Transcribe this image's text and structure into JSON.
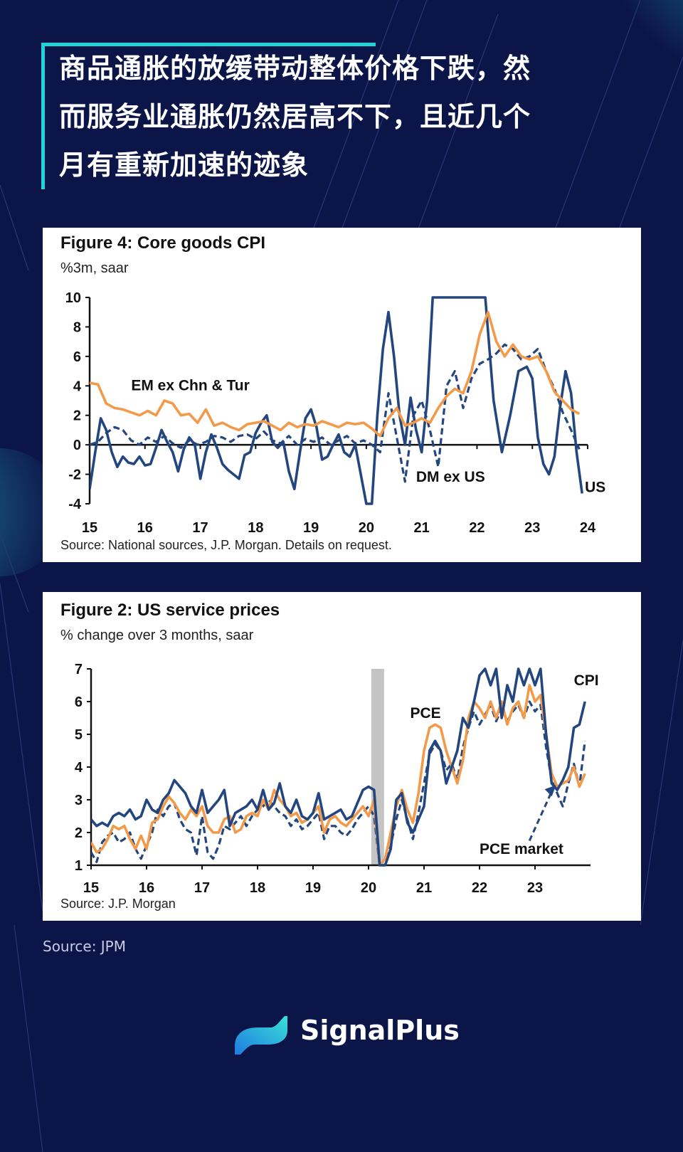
{
  "headline": {
    "lines": [
      "商品通胀的放缓带动整体价格下跌，然",
      "而服务业通胀仍然居高不下，且近几个",
      "月有重新加速的迹象"
    ]
  },
  "colors": {
    "background": "#0b1548",
    "accent": "#1fd3d6",
    "navy_series": "#1f3f7a",
    "orange_series": "#f29a4a"
  },
  "chart_data": [
    {
      "type": "line",
      "title": "Figure 4: Core goods CPI",
      "subtitle": "%3m, saar",
      "source": "Source: National sources, J.P. Morgan. Details on request.",
      "x_tick_labels": [
        "15",
        "16",
        "17",
        "18",
        "19",
        "20",
        "21",
        "22",
        "23",
        "24"
      ],
      "y_tick_labels": [
        "10",
        "8",
        "6",
        "4",
        "2",
        "0",
        "-2",
        "-4"
      ],
      "xlim": [
        15,
        24
      ],
      "ylim": [
        -4,
        10
      ],
      "annotations": [
        "EM ex Chn & Tur",
        "DM ex US",
        "US"
      ],
      "series": [
        {
          "name": "EM ex Chn & Tur",
          "style": "solid-orange",
          "x": [
            15,
            15.15,
            15.3,
            15.45,
            15.6,
            15.75,
            15.9,
            16.05,
            16.2,
            16.35,
            16.5,
            16.65,
            16.8,
            16.95,
            17.1,
            17.25,
            17.4,
            17.55,
            17.7,
            17.85,
            18.0,
            18.15,
            18.3,
            18.45,
            18.6,
            18.75,
            18.9,
            19.05,
            19.2,
            19.35,
            19.5,
            19.65,
            19.8,
            19.95,
            20.1,
            20.25,
            20.4,
            20.55,
            20.7,
            20.85,
            21.0,
            21.15,
            21.3,
            21.45,
            21.6,
            21.75,
            21.9,
            22.05,
            22.2,
            22.35,
            22.5,
            22.65,
            22.8,
            22.95,
            23.1,
            23.25,
            23.4,
            23.55,
            23.7,
            23.85
          ],
          "y": [
            4.2,
            4.1,
            2.8,
            2.5,
            2.4,
            2.2,
            2.0,
            2.3,
            2.0,
            3.0,
            2.8,
            2.0,
            2.1,
            1.5,
            2.4,
            1.3,
            1.5,
            1.2,
            1.0,
            1.4,
            1.5,
            1.6,
            1.3,
            1.0,
            1.5,
            1.2,
            1.4,
            1.3,
            1.6,
            1.4,
            1.2,
            1.5,
            1.4,
            1.5,
            1.1,
            0.6,
            1.8,
            2.5,
            1.3,
            1.5,
            1.8,
            1.5,
            2.5,
            3.3,
            3.8,
            3.5,
            5.0,
            7.5,
            9.0,
            7.0,
            6.0,
            6.8,
            6.0,
            5.8,
            6.0,
            5.0,
            3.6,
            3.0,
            2.4,
            2.1
          ]
        },
        {
          "name": "DM ex US",
          "style": "dashed-navy",
          "x": [
            15,
            15.15,
            15.3,
            15.45,
            15.6,
            15.75,
            15.9,
            16.05,
            16.2,
            16.35,
            16.5,
            16.65,
            16.8,
            16.95,
            17.1,
            17.25,
            17.4,
            17.55,
            17.7,
            17.85,
            18.0,
            18.15,
            18.3,
            18.45,
            18.6,
            18.75,
            18.9,
            19.05,
            19.2,
            19.35,
            19.5,
            19.65,
            19.8,
            19.95,
            20.1,
            20.25,
            20.4,
            20.55,
            20.7,
            20.85,
            21.0,
            21.15,
            21.3,
            21.45,
            21.6,
            21.75,
            21.9,
            22.05,
            22.2,
            22.35,
            22.5,
            22.65,
            22.8,
            22.95,
            23.1,
            23.25,
            23.4,
            23.55,
            23.7,
            23.85
          ],
          "y": [
            0,
            0.2,
            0.8,
            1.2,
            1.0,
            0.3,
            0.0,
            0.5,
            0.2,
            0.6,
            0.1,
            -0.2,
            0.3,
            0.0,
            0.2,
            0.6,
            0.5,
            0.2,
            0.6,
            0.7,
            0.4,
            0.9,
            0.3,
            0.1,
            0.6,
            0.0,
            0.4,
            0.2,
            0.5,
            0.0,
            0.3,
            0.6,
            0.1,
            0.3,
            0.0,
            -0.5,
            3.5,
            0.5,
            -2.5,
            2.0,
            3.0,
            1.0,
            -1.5,
            4.0,
            5.0,
            2.5,
            4.5,
            5.5,
            5.8,
            6.2,
            6.8,
            6.5,
            5.8,
            6.0,
            6.5,
            5.0,
            3.8,
            2.2,
            1.0,
            -0.3
          ]
        },
        {
          "name": "US",
          "style": "solid-navy",
          "x": [
            15,
            15.1,
            15.2,
            15.3,
            15.4,
            15.5,
            15.6,
            15.7,
            15.8,
            15.9,
            16.0,
            16.1,
            16.2,
            16.3,
            16.4,
            16.5,
            16.6,
            16.7,
            16.8,
            16.9,
            17.0,
            17.1,
            17.2,
            17.3,
            17.4,
            17.5,
            17.6,
            17.7,
            17.8,
            17.9,
            18.0,
            18.1,
            18.2,
            18.3,
            18.4,
            18.5,
            18.6,
            18.7,
            18.8,
            18.9,
            19.0,
            19.1,
            19.2,
            19.3,
            19.4,
            19.5,
            19.6,
            19.7,
            19.8,
            19.9,
            20.0,
            20.1,
            20.2,
            20.3,
            20.4,
            20.5,
            20.6,
            20.7,
            20.8,
            20.9,
            21.0,
            21.1,
            21.2,
            21.27,
            21.32,
            21.55,
            21.62,
            22.1,
            22.15,
            22.3,
            22.45,
            22.6,
            22.75,
            22.9,
            23.0,
            23.1,
            23.2,
            23.3,
            23.4,
            23.5,
            23.6,
            23.7,
            23.8,
            23.9
          ],
          "y": [
            -3.0,
            -0.5,
            1.8,
            1.0,
            -0.5,
            -1.5,
            -0.8,
            -1.2,
            -1.3,
            -0.8,
            -1.4,
            -1.3,
            -0.2,
            1.0,
            0.2,
            -0.5,
            -1.8,
            -0.3,
            0.5,
            0.0,
            -2.3,
            -0.5,
            0.7,
            -0.2,
            -1.3,
            -1.7,
            -2.0,
            -2.3,
            -0.7,
            -0.5,
            0.8,
            1.5,
            2.0,
            0.2,
            -0.2,
            0.2,
            -1.8,
            -3.0,
            -0.5,
            1.8,
            2.4,
            1.2,
            -1.0,
            -0.8,
            0.0,
            0.7,
            -0.5,
            -0.8,
            0.0,
            -2.0,
            -4.0,
            -4.0,
            2.0,
            6.5,
            9.0,
            6.0,
            2.0,
            0.0,
            3.2,
            1.0,
            -0.5,
            3.0,
            10,
            10,
            10,
            10,
            10,
            10,
            10,
            3.0,
            -0.5,
            2.0,
            5.0,
            5.3,
            4.5,
            0.5,
            -1.3,
            -2.0,
            -0.8,
            2.5,
            5.0,
            3.5,
            -0.5,
            -3.3
          ]
        }
      ]
    },
    {
      "type": "line",
      "title": "Figure 2: US service prices",
      "subtitle": "% change over 3 months, saar",
      "source": "Source: J.P. Morgan",
      "x_tick_labels": [
        "15",
        "16",
        "17",
        "18",
        "19",
        "20",
        "21",
        "22",
        "23"
      ],
      "y_tick_labels": [
        "7",
        "6",
        "5",
        "4",
        "3",
        "2",
        "1"
      ],
      "xlim": [
        15,
        24
      ],
      "ylim": [
        1,
        7
      ],
      "shaded_region": [
        20.05,
        20.28
      ],
      "annotations": [
        "PCE",
        "CPI",
        "PCE market"
      ],
      "series": [
        {
          "name": "CPI",
          "style": "solid-navy",
          "x": [
            15,
            15.1,
            15.2,
            15.3,
            15.4,
            15.5,
            15.6,
            15.7,
            15.8,
            15.9,
            16.0,
            16.1,
            16.2,
            16.3,
            16.4,
            16.5,
            16.6,
            16.7,
            16.8,
            16.9,
            17.0,
            17.1,
            17.2,
            17.3,
            17.4,
            17.5,
            17.6,
            17.7,
            17.8,
            17.9,
            18.0,
            18.1,
            18.2,
            18.3,
            18.4,
            18.5,
            18.6,
            18.7,
            18.8,
            18.9,
            19.0,
            19.1,
            19.2,
            19.3,
            19.4,
            19.5,
            19.6,
            19.7,
            19.8,
            19.9,
            20.0,
            20.1,
            20.2,
            20.3,
            20.4,
            20.5,
            20.6,
            20.7,
            20.8,
            20.9,
            21.0,
            21.1,
            21.2,
            21.3,
            21.4,
            21.5,
            21.6,
            21.7,
            21.8,
            21.9,
            22.0,
            22.1,
            22.2,
            22.3,
            22.4,
            22.5,
            22.6,
            22.7,
            22.8,
            22.9,
            23.0,
            23.1,
            23.2,
            23.3,
            23.4,
            23.5,
            23.6,
            23.7,
            23.8,
            23.9
          ],
          "y": [
            2.4,
            2.2,
            2.3,
            2.2,
            2.5,
            2.6,
            2.5,
            2.7,
            2.4,
            2.5,
            3.0,
            2.7,
            2.6,
            3.0,
            3.2,
            3.6,
            3.4,
            3.2,
            2.8,
            2.6,
            3.3,
            2.6,
            2.8,
            3.0,
            3.3,
            2.2,
            2.6,
            2.7,
            2.8,
            3.0,
            2.7,
            3.3,
            2.7,
            2.9,
            3.5,
            2.8,
            2.6,
            3.0,
            2.5,
            2.4,
            2.6,
            3.2,
            2.4,
            2.5,
            2.6,
            2.7,
            2.4,
            2.5,
            2.9,
            3.3,
            3.4,
            3.3,
            1.0,
            1.0,
            1.5,
            3.0,
            3.2,
            2.3,
            2.0,
            2.4,
            2.8,
            4.5,
            4.8,
            4.5,
            3.5,
            4.0,
            4.5,
            5.5,
            5.2,
            6.0,
            6.8,
            7.0,
            6.5,
            7.0,
            5.5,
            6.5,
            6.0,
            7.0,
            6.5,
            7.0,
            6.5,
            7.0,
            5.0,
            3.5,
            3.3,
            3.6,
            4.0,
            5.2,
            5.3,
            6.0
          ]
        },
        {
          "name": "PCE",
          "style": "solid-orange",
          "x": [
            15,
            15.1,
            15.2,
            15.3,
            15.4,
            15.5,
            15.6,
            15.7,
            15.8,
            15.9,
            16.0,
            16.1,
            16.2,
            16.3,
            16.4,
            16.5,
            16.6,
            16.7,
            16.8,
            16.9,
            17.0,
            17.1,
            17.2,
            17.3,
            17.4,
            17.5,
            17.6,
            17.7,
            17.8,
            17.9,
            18.0,
            18.1,
            18.2,
            18.3,
            18.4,
            18.5,
            18.6,
            18.7,
            18.8,
            18.9,
            19.0,
            19.1,
            19.2,
            19.3,
            19.4,
            19.5,
            19.6,
            19.7,
            19.8,
            19.9,
            20.0,
            20.1,
            20.2,
            20.3,
            20.4,
            20.5,
            20.6,
            20.7,
            20.8,
            20.9,
            21.0,
            21.1,
            21.2,
            21.3,
            21.4,
            21.5,
            21.6,
            21.7,
            21.8,
            21.9,
            22.0,
            22.1,
            22.2,
            22.3,
            22.4,
            22.5,
            22.6,
            22.7,
            22.8,
            22.9,
            23.0,
            23.1,
            23.2,
            23.3,
            23.4,
            23.5,
            23.6,
            23.7,
            23.8,
            23.9
          ],
          "y": [
            1.7,
            1.4,
            1.5,
            1.8,
            2.2,
            2.1,
            2.2,
            1.8,
            1.5,
            1.9,
            1.5,
            2.3,
            2.4,
            2.8,
            3.1,
            2.9,
            2.6,
            2.4,
            2.7,
            2.5,
            2.8,
            2.2,
            2.0,
            2.0,
            2.4,
            2.5,
            2.0,
            2.1,
            2.5,
            2.6,
            2.5,
            3.0,
            2.7,
            3.3,
            3.0,
            2.8,
            2.5,
            2.6,
            2.3,
            2.4,
            2.6,
            2.8,
            2.0,
            2.4,
            2.5,
            2.3,
            2.2,
            2.4,
            2.6,
            2.8,
            2.5,
            3.0,
            1.0,
            1.2,
            2.0,
            2.8,
            3.3,
            2.7,
            2.3,
            3.2,
            4.5,
            5.2,
            5.3,
            5.2,
            4.5,
            4.0,
            3.5,
            4.2,
            5.5,
            6.0,
            5.8,
            5.5,
            6.0,
            5.5,
            6.0,
            5.3,
            5.8,
            6.0,
            5.5,
            6.5,
            6.0,
            6.2,
            5.0,
            3.8,
            3.4,
            3.5,
            3.6,
            4.0,
            3.4,
            3.8
          ]
        },
        {
          "name": "PCE market",
          "style": "dashed-navy",
          "x": [
            15,
            15.1,
            15.2,
            15.3,
            15.4,
            15.5,
            15.6,
            15.7,
            15.8,
            15.9,
            16.0,
            16.1,
            16.2,
            16.3,
            16.4,
            16.5,
            16.6,
            16.7,
            16.8,
            16.9,
            17.0,
            17.1,
            17.2,
            17.3,
            17.4,
            17.5,
            17.6,
            17.7,
            17.8,
            17.9,
            18.0,
            18.1,
            18.2,
            18.3,
            18.4,
            18.5,
            18.6,
            18.7,
            18.8,
            18.9,
            19.0,
            19.1,
            19.2,
            19.3,
            19.4,
            19.5,
            19.6,
            19.7,
            19.8,
            19.9,
            20.0,
            20.1,
            20.2,
            20.3,
            20.4,
            20.5,
            20.6,
            20.7,
            20.8,
            20.9,
            21.0,
            21.1,
            21.2,
            21.3,
            21.4,
            21.5,
            21.6,
            21.7,
            21.8,
            21.9,
            22.0,
            22.1,
            22.2,
            22.3,
            22.4,
            22.5,
            22.6,
            22.7,
            22.8,
            22.9,
            23.0,
            23.1,
            23.2,
            23.3,
            23.4,
            23.5,
            23.6,
            23.7,
            23.8,
            23.9
          ],
          "y": [
            1.4,
            1.1,
            1.7,
            1.9,
            2.0,
            1.7,
            1.8,
            2.0,
            1.5,
            1.2,
            1.6,
            2.0,
            2.7,
            2.5,
            2.8,
            2.9,
            2.4,
            2.1,
            2.0,
            1.3,
            2.5,
            1.4,
            1.2,
            1.6,
            2.2,
            2.1,
            2.3,
            2.5,
            2.2,
            2.5,
            2.7,
            2.8,
            3.0,
            2.8,
            2.6,
            2.5,
            2.2,
            2.4,
            2.1,
            2.2,
            2.4,
            2.6,
            1.8,
            2.2,
            2.2,
            2.0,
            1.9,
            2.1,
            2.4,
            2.6,
            2.8,
            2.5,
            1.0,
            1.0,
            1.6,
            2.4,
            3.0,
            2.4,
            1.8,
            2.6,
            3.5,
            4.4,
            4.7,
            4.5,
            3.9,
            4.1,
            3.6,
            4.6,
            5.2,
            5.7,
            5.3,
            5.6,
            5.9,
            5.4,
            5.8,
            5.4,
            5.7,
            5.9,
            5.5,
            6.0,
            5.7,
            5.9,
            4.6,
            3.6,
            3.2,
            2.8,
            3.5,
            4.1,
            3.4,
            4.8
          ]
        }
      ]
    }
  ],
  "page_source": "Source: JPM",
  "brand": {
    "name": "SignalPlus"
  }
}
